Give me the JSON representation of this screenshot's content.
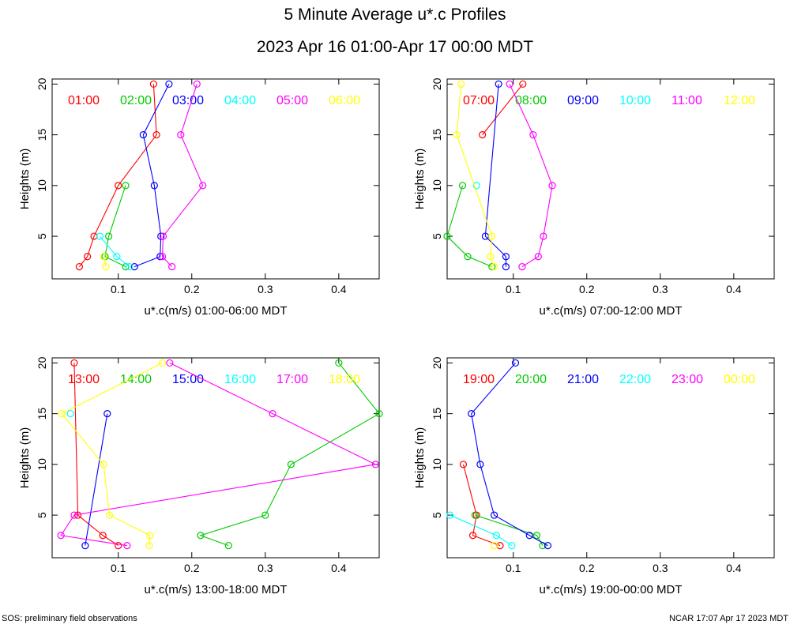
{
  "title": "5 Minute Average u*.c Profiles",
  "subtitle": "2023 Apr 16 01:00-Apr 17 00:00 MDT",
  "footer_left": "SOS: preliminary field observations",
  "footer_right": "NCAR 17:07 Apr 17 2023 MDT",
  "chart_data": [
    {
      "type": "line",
      "xlabel": "u*.c(m/s) 01:00-06:00 MDT",
      "ylabel": "Heights (m)",
      "xlim": [
        0.01,
        0.455
      ],
      "ylim": [
        0.8,
        20.5
      ],
      "xticks": [
        0.1,
        0.2,
        0.3,
        0.4
      ],
      "yticks": [
        5,
        10,
        15,
        20
      ],
      "series": [
        {
          "name": "01:00",
          "color": "#ff0000",
          "x": [
            0.148,
            0.152,
            0.1,
            0.067,
            0.058,
            0.047
          ],
          "y": [
            20,
            15,
            10,
            5,
            3,
            2
          ]
        },
        {
          "name": "02:00",
          "color": "#00cc00",
          "x": [
            0.11,
            0.087,
            0.082,
            0.11
          ],
          "y": [
            10,
            5,
            3,
            2
          ]
        },
        {
          "name": "03:00",
          "color": "#0000ff",
          "x": [
            0.169,
            0.134,
            0.149,
            0.158,
            0.157,
            0.122
          ],
          "y": [
            20,
            15,
            10,
            5,
            3,
            2
          ]
        },
        {
          "name": "04:00",
          "color": "#00ffff",
          "x": [
            0.075,
            0.098,
            0.115
          ],
          "y": [
            5,
            3,
            2
          ]
        },
        {
          "name": "05:00",
          "color": "#ff00ff",
          "x": [
            0.207,
            0.185,
            0.215,
            0.161,
            0.16,
            0.173
          ],
          "y": [
            20,
            15,
            10,
            5,
            3,
            2
          ]
        },
        {
          "name": "06:00",
          "color": "#ffff00",
          "x": [
            0.08,
            0.083
          ],
          "y": [
            3,
            2
          ]
        }
      ]
    },
    {
      "type": "line",
      "xlabel": "u*.c(m/s) 07:00-12:00 MDT",
      "ylabel": "Heights (m)",
      "xlim": [
        0.01,
        0.455
      ],
      "ylim": [
        0.8,
        20.5
      ],
      "xticks": [
        0.1,
        0.2,
        0.3,
        0.4
      ],
      "yticks": [
        5,
        10,
        15,
        20
      ],
      "series": [
        {
          "name": "07:00",
          "color": "#ff0000",
          "x": [
            0.113,
            0.058
          ],
          "y": [
            20,
            15
          ]
        },
        {
          "name": "08:00",
          "color": "#00cc00",
          "x": [
            0.031,
            0.01,
            0.038,
            0.071
          ],
          "y": [
            10,
            5,
            3,
            2
          ]
        },
        {
          "name": "09:00",
          "color": "#0000ff",
          "x": [
            0.08,
            0.062,
            0.09,
            0.09
          ],
          "y": [
            20,
            5,
            3,
            2
          ]
        },
        {
          "name": "10:00",
          "color": "#00ffff",
          "x": [
            0.05
          ],
          "y": [
            10
          ]
        },
        {
          "name": "11:00",
          "color": "#ff00ff",
          "x": [
            0.095,
            0.127,
            0.153,
            0.141,
            0.134,
            0.112
          ],
          "y": [
            20,
            15,
            10,
            5,
            3,
            2
          ]
        },
        {
          "name": "12:00",
          "color": "#ffff00",
          "x": [
            0.029,
            0.023,
            0.071,
            0.069,
            0.074
          ],
          "y": [
            20,
            15,
            5,
            3,
            2
          ]
        }
      ]
    },
    {
      "type": "line",
      "xlabel": "u*.c(m/s) 13:00-18:00 MDT",
      "ylabel": "Heights (m)",
      "xlim": [
        0.01,
        0.455
      ],
      "ylim": [
        0.8,
        20.5
      ],
      "xticks": [
        0.1,
        0.2,
        0.3,
        0.4
      ],
      "yticks": [
        5,
        10,
        15,
        20
      ],
      "series": [
        {
          "name": "13:00",
          "color": "#ff0000",
          "x": [
            0.04,
            0.045,
            0.079,
            0.1
          ],
          "y": [
            20,
            5,
            3,
            2
          ]
        },
        {
          "name": "14:00",
          "color": "#00cc00",
          "x": [
            0.4,
            0.455,
            0.335,
            0.3,
            0.212,
            0.25
          ],
          "y": [
            20,
            15,
            10,
            5,
            3,
            2
          ]
        },
        {
          "name": "15:00",
          "color": "#0000ff",
          "x": [
            0.085,
            0.055
          ],
          "y": [
            15,
            2
          ]
        },
        {
          "name": "16:00",
          "color": "#00ffff",
          "x": [
            0.035
          ],
          "y": [
            15
          ]
        },
        {
          "name": "17:00",
          "color": "#ff00ff",
          "x": [
            0.17,
            0.31,
            0.45,
            0.04,
            0.022,
            0.112
          ],
          "y": [
            20,
            15,
            10,
            5,
            3,
            2
          ]
        },
        {
          "name": "18:00",
          "color": "#ffff00",
          "x": [
            0.16,
            0.023,
            0.08,
            0.088,
            0.143,
            0.142
          ],
          "y": [
            20,
            15,
            10,
            5,
            3,
            2
          ]
        }
      ]
    },
    {
      "type": "line",
      "xlabel": "u*.c(m/s) 19:00-00:00 MDT",
      "ylabel": "Heights (m)",
      "xlim": [
        0.01,
        0.455
      ],
      "ylim": [
        0.8,
        20.5
      ],
      "xticks": [
        0.1,
        0.2,
        0.3,
        0.4
      ],
      "yticks": [
        5,
        10,
        15,
        20
      ],
      "series": [
        {
          "name": "19:00",
          "color": "#ff0000",
          "x": [
            0.032,
            0.05,
            0.045,
            0.082
          ],
          "y": [
            10,
            5,
            3,
            2
          ]
        },
        {
          "name": "20:00",
          "color": "#00cc00",
          "x": [
            0.048,
            0.132,
            0.14
          ],
          "y": [
            5,
            3,
            2
          ]
        },
        {
          "name": "21:00",
          "color": "#0000ff",
          "x": [
            0.103,
            0.043,
            0.055,
            0.074,
            0.122,
            0.147
          ],
          "y": [
            20,
            15,
            10,
            5,
            3,
            2
          ]
        },
        {
          "name": "22:00",
          "color": "#00ffff",
          "x": [
            0.014,
            0.077,
            0.098
          ],
          "y": [
            5,
            3,
            2
          ]
        },
        {
          "name": "23:00",
          "color": "#ff00ff",
          "x": [],
          "y": []
        },
        {
          "name": "00:00",
          "color": "#ffff00",
          "x": [
            0.074
          ],
          "y": [
            2
          ]
        }
      ]
    }
  ]
}
